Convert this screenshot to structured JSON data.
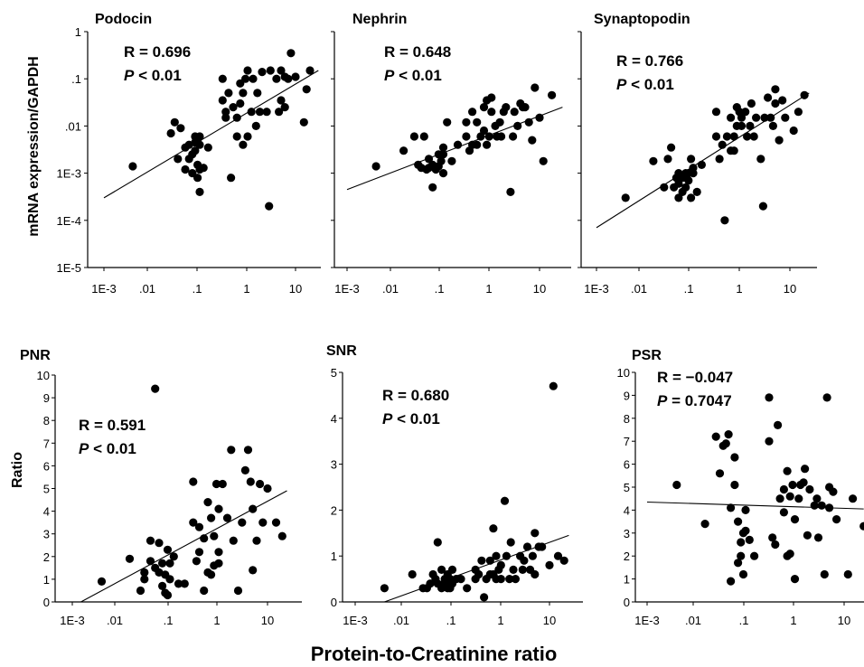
{
  "figure": {
    "ylabel_top": "mRNA expression/GAPDH",
    "ylabel_bottom": "Ratio",
    "xlabel": "Protein-to-Creatinine ratio"
  },
  "log_ticks": [
    "1E-3",
    ".01",
    ".1",
    "1",
    "10"
  ],
  "top_y_ticks": [
    "1",
    ".1",
    ".01",
    "1E-3",
    "1E-4",
    "1E-5"
  ],
  "chart_data": [
    {
      "id": "podocin",
      "type": "scatter",
      "title": "Podocin",
      "stat_r": "R = 0.696",
      "stat_p_sym": "P",
      "stat_p_rest": " < 0.01",
      "xscale": "log",
      "yscale": "log",
      "xlim": [
        0.001,
        30
      ],
      "ylim": [
        1e-05,
        1
      ],
      "trend": {
        "x": [
          0.001,
          30
        ],
        "y": [
          0.0003,
          0.15
        ]
      },
      "x": [
        0.004,
        0.025,
        0.03,
        0.035,
        0.04,
        0.05,
        0.05,
        0.06,
        0.06,
        0.07,
        0.07,
        0.08,
        0.08,
        0.08,
        0.09,
        0.09,
        0.09,
        0.1,
        0.1,
        0.1,
        0.1,
        0.12,
        0.15,
        0.3,
        0.3,
        0.35,
        0.35,
        0.4,
        0.45,
        0.5,
        0.6,
        0.6,
        0.7,
        0.7,
        0.8,
        0.8,
        0.9,
        1.0,
        1.0,
        1.2,
        1.3,
        1.5,
        1.6,
        1.8,
        2.0,
        2.5,
        2.8,
        3.0,
        4.0,
        4.5,
        5.0,
        5.0,
        6.0,
        6.0,
        7.0,
        8.0,
        10.0,
        15.0,
        17.0,
        20.0
      ],
      "y": [
        0.0014,
        0.007,
        0.012,
        0.002,
        0.009,
        0.0012,
        0.0035,
        0.002,
        0.004,
        0.0025,
        0.001,
        0.003,
        0.0045,
        0.006,
        0.0008,
        0.0015,
        0.005,
        0.0004,
        0.0012,
        0.004,
        0.006,
        0.0013,
        0.0035,
        0.035,
        0.1,
        0.015,
        0.02,
        0.05,
        0.0008,
        0.025,
        0.006,
        0.015,
        0.03,
        0.08,
        0.004,
        0.05,
        0.1,
        0.006,
        0.15,
        0.02,
        0.1,
        0.01,
        0.05,
        0.02,
        0.14,
        0.02,
        0.0002,
        0.15,
        0.1,
        0.02,
        0.035,
        0.15,
        0.025,
        0.11,
        0.1,
        0.35,
        0.11,
        0.012,
        0.06,
        0.15
      ]
    },
    {
      "id": "nephrin",
      "type": "scatter",
      "title": "Nephrin",
      "stat_r": "R = 0.648",
      "stat_p_sym": "P",
      "stat_p_rest": " < 0.01",
      "xscale": "log",
      "yscale": "log",
      "xlim": [
        0.001,
        30
      ],
      "ylim": [
        1e-05,
        1
      ],
      "trend": {
        "x": [
          0.001,
          30
        ],
        "y": [
          0.00045,
          0.025
        ]
      },
      "x": [
        0.004,
        0.015,
        0.025,
        0.03,
        0.035,
        0.04,
        0.045,
        0.05,
        0.05,
        0.06,
        0.06,
        0.07,
        0.08,
        0.08,
        0.09,
        0.1,
        0.1,
        0.1,
        0.12,
        0.15,
        0.2,
        0.3,
        0.3,
        0.35,
        0.4,
        0.4,
        0.5,
        0.5,
        0.6,
        0.7,
        0.7,
        0.8,
        0.8,
        0.9,
        1.0,
        1.0,
        1.2,
        1.3,
        1.5,
        1.6,
        1.8,
        2.0,
        2.5,
        2.8,
        3.0,
        3.5,
        4.0,
        4.5,
        5.0,
        6.0,
        7.0,
        8.0,
        10.0,
        12.0,
        18.0
      ],
      "y": [
        0.0014,
        0.003,
        0.006,
        0.0015,
        0.0013,
        0.006,
        0.0012,
        0.002,
        0.0013,
        0.0005,
        0.0015,
        0.0012,
        0.0025,
        0.0014,
        0.0018,
        0.001,
        0.0035,
        0.0025,
        0.012,
        0.0018,
        0.004,
        0.006,
        0.012,
        0.003,
        0.02,
        0.004,
        0.012,
        0.004,
        0.006,
        0.008,
        0.025,
        0.004,
        0.035,
        0.006,
        0.04,
        0.02,
        0.01,
        0.006,
        0.012,
        0.006,
        0.02,
        0.025,
        0.0004,
        0.006,
        0.02,
        0.01,
        0.03,
        0.025,
        0.025,
        0.012,
        0.005,
        0.065,
        0.015,
        0.0018,
        0.045
      ]
    },
    {
      "id": "synaptopodin",
      "type": "scatter",
      "title": "Synaptopodin",
      "stat_r": "R = 0.766",
      "stat_p_sym": "P",
      "stat_p_rest": " < 0.01",
      "xscale": "log",
      "yscale": "log",
      "xlim": [
        0.001,
        30
      ],
      "ylim": [
        1e-05,
        1
      ],
      "trend": {
        "x": [
          0.001,
          25
        ],
        "y": [
          7e-05,
          0.05
        ]
      },
      "x": [
        0.004,
        0.015,
        0.025,
        0.03,
        0.035,
        0.04,
        0.045,
        0.05,
        0.05,
        0.05,
        0.06,
        0.06,
        0.07,
        0.07,
        0.08,
        0.08,
        0.09,
        0.09,
        0.1,
        0.1,
        0.12,
        0.15,
        0.3,
        0.3,
        0.35,
        0.4,
        0.45,
        0.5,
        0.6,
        0.6,
        0.7,
        0.7,
        0.8,
        0.8,
        0.9,
        1.0,
        1.0,
        1.2,
        1.3,
        1.5,
        1.6,
        1.8,
        2.0,
        2.5,
        2.8,
        3.0,
        3.5,
        4.0,
        4.5,
        5.0,
        5.0,
        6.0,
        7.0,
        8.0,
        12.0,
        15.0,
        20.0
      ],
      "y": [
        0.0003,
        0.0018,
        0.0005,
        0.002,
        0.0035,
        0.0005,
        0.0008,
        0.0003,
        0.0006,
        0.001,
        0.0004,
        0.0008,
        0.0005,
        0.001,
        0.0007,
        0.001,
        0.0003,
        0.002,
        0.001,
        0.0013,
        0.0004,
        0.0015,
        0.006,
        0.02,
        0.002,
        0.004,
        0.0001,
        0.006,
        0.003,
        0.015,
        0.003,
        0.006,
        0.01,
        0.025,
        0.02,
        0.01,
        0.015,
        0.02,
        0.006,
        0.01,
        0.03,
        0.006,
        0.015,
        0.002,
        0.0002,
        0.015,
        0.04,
        0.015,
        0.01,
        0.03,
        0.06,
        0.005,
        0.035,
        0.015,
        0.008,
        0.02,
        0.045
      ]
    },
    {
      "id": "pnr",
      "type": "scatter",
      "title": "PNR",
      "stat_r": "R = 0.591",
      "stat_p_sym": "P",
      "stat_p_rest": " < 0.01",
      "xscale": "log",
      "yscale": "linear",
      "xlim": [
        0.001,
        30
      ],
      "ylim": [
        0,
        10
      ],
      "y_ticks": [
        "0",
        "1",
        "2",
        "3",
        "4",
        "5",
        "6",
        "7",
        "8",
        "9",
        "10"
      ],
      "trend": {
        "x": [
          0.0015,
          25
        ],
        "y": [
          0,
          4.9
        ]
      },
      "x": [
        0.004,
        0.015,
        0.025,
        0.03,
        0.03,
        0.04,
        0.04,
        0.05,
        0.05,
        0.06,
        0.06,
        0.07,
        0.07,
        0.08,
        0.08,
        0.09,
        0.09,
        0.1,
        0.1,
        0.12,
        0.15,
        0.2,
        0.3,
        0.3,
        0.35,
        0.4,
        0.4,
        0.5,
        0.5,
        0.6,
        0.6,
        0.7,
        0.7,
        0.8,
        0.8,
        0.9,
        1.0,
        1.0,
        1.0,
        1.2,
        1.5,
        1.8,
        2.0,
        2.5,
        3.0,
        3.5,
        4.0,
        4.5,
        5.0,
        5.0,
        6.0,
        7.0,
        8.0,
        10.0,
        15.0,
        20.0
      ],
      "y": [
        0.9,
        1.9,
        0.5,
        1.3,
        1.0,
        1.8,
        2.7,
        1.5,
        9.4,
        1.3,
        2.6,
        0.7,
        1.7,
        0.4,
        1.2,
        0.3,
        2.3,
        1.7,
        1.0,
        2.0,
        0.8,
        0.8,
        3.5,
        5.3,
        1.8,
        3.3,
        2.2,
        0.5,
        2.8,
        1.3,
        4.4,
        3.7,
        1.2,
        2.9,
        1.6,
        5.2,
        2.2,
        4.1,
        1.7,
        5.2,
        3.7,
        6.7,
        2.7,
        0.5,
        3.5,
        5.8,
        6.7,
        5.3,
        4.1,
        1.4,
        2.7,
        5.2,
        3.5,
        5.0,
        3.5,
        2.9
      ]
    },
    {
      "id": "snr",
      "type": "scatter",
      "title": "SNR",
      "stat_r": "R = 0.680",
      "stat_p_sym": "P",
      "stat_p_rest": " < 0.01",
      "xscale": "log",
      "yscale": "linear",
      "xlim": [
        0.001,
        30
      ],
      "ylim": [
        0,
        5
      ],
      "y_ticks": [
        "0",
        "1",
        "2",
        "3",
        "4",
        "5"
      ],
      "trend": {
        "x": [
          0.004,
          25
        ],
        "y": [
          0,
          1.45
        ]
      },
      "x": [
        0.004,
        0.015,
        0.025,
        0.03,
        0.035,
        0.04,
        0.045,
        0.05,
        0.05,
        0.06,
        0.06,
        0.07,
        0.07,
        0.08,
        0.08,
        0.09,
        0.09,
        0.1,
        0.1,
        0.12,
        0.15,
        0.2,
        0.3,
        0.3,
        0.35,
        0.4,
        0.45,
        0.5,
        0.6,
        0.6,
        0.7,
        0.7,
        0.8,
        0.8,
        0.9,
        1.0,
        1.0,
        1.2,
        1.3,
        1.5,
        1.6,
        1.8,
        2.0,
        2.5,
        2.8,
        3.0,
        3.5,
        4.0,
        4.5,
        5.0,
        5.0,
        6.0,
        7.0,
        10.0,
        12.0,
        15.0,
        20.0
      ],
      "y": [
        0.3,
        0.6,
        0.3,
        0.3,
        0.4,
        0.6,
        0.5,
        0.4,
        1.3,
        0.3,
        0.7,
        0.5,
        0.4,
        0.3,
        0.6,
        0.5,
        0.3,
        0.4,
        0.7,
        0.5,
        0.5,
        0.3,
        0.7,
        0.5,
        0.6,
        0.9,
        0.1,
        0.5,
        0.6,
        0.9,
        1.6,
        0.6,
        1.0,
        0.5,
        0.7,
        0.5,
        0.8,
        2.2,
        1.0,
        0.5,
        1.3,
        0.7,
        0.5,
        1.0,
        0.7,
        0.9,
        1.2,
        0.7,
        1.0,
        0.6,
        1.5,
        1.2,
        1.2,
        0.8,
        4.7,
        1.0,
        0.9
      ]
    },
    {
      "id": "psr",
      "type": "scatter",
      "title": "PSR",
      "stat_r": "R = −0.047",
      "stat_p_sym": "P",
      "stat_p_rest": " = 0.7047",
      "xscale": "log",
      "yscale": "linear",
      "xlim": [
        0.001,
        25
      ],
      "ylim": [
        0,
        10
      ],
      "y_ticks": [
        "0",
        "1",
        "2",
        "3",
        "4",
        "5",
        "6",
        "7",
        "8",
        "9",
        "10"
      ],
      "trend": {
        "x": [
          0.001,
          25
        ],
        "y": [
          4.35,
          4.05
        ]
      },
      "x": [
        0.004,
        0.015,
        0.025,
        0.03,
        0.035,
        0.04,
        0.045,
        0.05,
        0.05,
        0.06,
        0.06,
        0.07,
        0.07,
        0.08,
        0.08,
        0.09,
        0.09,
        0.1,
        0.1,
        0.12,
        0.15,
        0.3,
        0.3,
        0.35,
        0.4,
        0.45,
        0.5,
        0.6,
        0.6,
        0.7,
        0.7,
        0.8,
        0.8,
        0.9,
        1.0,
        1.0,
        1.2,
        1.3,
        1.5,
        1.6,
        1.8,
        2.0,
        2.5,
        2.8,
        3.0,
        3.5,
        4.0,
        4.5,
        5.0,
        5.0,
        6.0,
        7.0,
        12.0,
        15.0,
        25.0
      ],
      "y": [
        5.1,
        3.4,
        7.2,
        5.6,
        6.8,
        6.9,
        7.3,
        0.9,
        4.1,
        5.1,
        6.3,
        3.5,
        1.7,
        2.0,
        2.6,
        1.2,
        3.0,
        3.1,
        4.0,
        2.7,
        2.0,
        8.9,
        7.0,
        2.8,
        2.5,
        7.7,
        4.5,
        3.9,
        4.9,
        2.0,
        5.7,
        2.1,
        4.6,
        5.1,
        1.0,
        3.6,
        4.5,
        5.1,
        5.2,
        5.8,
        2.9,
        4.9,
        4.2,
        4.5,
        2.8,
        4.2,
        1.2,
        8.9,
        4.1,
        5.0,
        4.8,
        3.6,
        1.2,
        4.5,
        3.3
      ]
    }
  ]
}
